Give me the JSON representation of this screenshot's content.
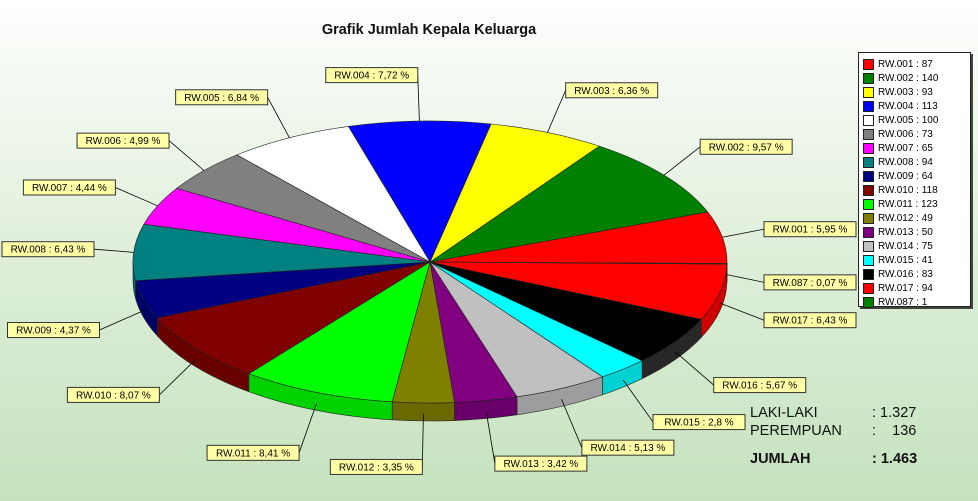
{
  "chart_data": {
    "type": "pie",
    "title": "Grafik Jumlah Kepala Keluarga",
    "slices": [
      {
        "name": "RW.001",
        "value": 87,
        "label": "5,95 %",
        "color": "#ff0000"
      },
      {
        "name": "RW.002",
        "value": 140,
        "label": "9,57 %",
        "color": "#008000"
      },
      {
        "name": "RW.003",
        "value": 93,
        "label": "6,36 %",
        "color": "#ffff00"
      },
      {
        "name": "RW.004",
        "value": 113,
        "label": "7,72 %",
        "color": "#0000ff"
      },
      {
        "name": "RW.005",
        "value": 100,
        "label": "6,84 %",
        "color": "#ffffff"
      },
      {
        "name": "RW.006",
        "value": 73,
        "label": "4,99 %",
        "color": "#808080"
      },
      {
        "name": "RW.007",
        "value": 65,
        "label": "4,44 %",
        "color": "#ff00ff"
      },
      {
        "name": "RW.008",
        "value": 94,
        "label": "6,43 %",
        "color": "#008080"
      },
      {
        "name": "RW.009",
        "value": 64,
        "label": "4,37 %",
        "color": "#000080"
      },
      {
        "name": "RW.010",
        "value": 118,
        "label": "8,07 %",
        "color": "#800000"
      },
      {
        "name": "RW.011",
        "value": 123,
        "label": "8,41 %",
        "color": "#00ff00"
      },
      {
        "name": "RW.012",
        "value": 49,
        "label": "3,35 %",
        "color": "#808000"
      },
      {
        "name": "RW.013",
        "value": 50,
        "label": "3,42 %",
        "color": "#800080"
      },
      {
        "name": "RW.014",
        "value": 75,
        "label": "5,13 %",
        "color": "#c0c0c0"
      },
      {
        "name": "RW.015",
        "value": 41,
        "label": "2,8 %",
        "color": "#00ffff"
      },
      {
        "name": "RW.016",
        "value": 83,
        "label": "5,67 %",
        "color": "#000000"
      },
      {
        "name": "RW.017",
        "value": 94,
        "label": "6,43 %",
        "color": "#ff0000"
      },
      {
        "name": "RW.087",
        "value": 1,
        "label": "0,07 %",
        "color": "#008000"
      }
    ],
    "legend": "right"
  },
  "summary": {
    "male_label": "LAKI-LAKI",
    "male_value": ": 1.327",
    "female_label": "PEREMPUAN",
    "female_value": ":    136",
    "total_label": "JUMLAH",
    "total_value": ": 1.463"
  }
}
